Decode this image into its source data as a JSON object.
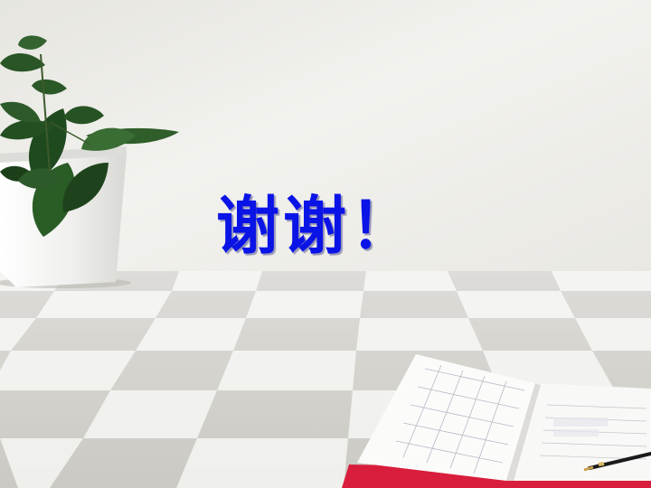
{
  "slide": {
    "title": "谢谢！",
    "title_color": "#0a14e6"
  },
  "background": {
    "wall_color": "#ebebe6",
    "floor_light_color": "#f1f1ee",
    "floor_dark_color": "#c9c7c1",
    "planter_color": "#f4f4f2",
    "leaf_color": "#1f4a1f",
    "notebook_cover_color": "#d81e3c",
    "pen_color": "#1a1a1a"
  }
}
